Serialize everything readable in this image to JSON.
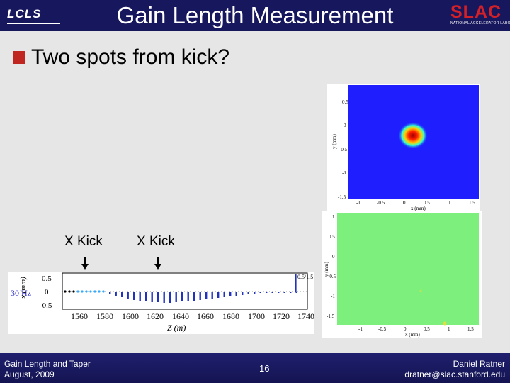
{
  "header": {
    "title": "Gain Length Measurement",
    "left_logo": "LCLS",
    "right_logo": "SLAC",
    "right_logo_sub": "NATIONAL ACCELERATOR LABORATORY",
    "accent_color": "#17175e",
    "logo_red": "#d42027"
  },
  "bullet": {
    "text": "Two spots from kick?",
    "color": "#c0251f"
  },
  "kick_labels": [
    "X Kick",
    "X Kick"
  ],
  "profile_plot": {
    "side_label": "30 Hz",
    "ylabel": "x (mm)",
    "xlabel": "Z (m)",
    "y_ticks": [
      "0.5",
      "0",
      "-0.5"
    ],
    "x_ticks": [
      "1560",
      "1580",
      "1600",
      "1620",
      "1640",
      "1660",
      "1680",
      "1700",
      "1720",
      "1740"
    ],
    "right_label": "0.5/1.5"
  },
  "image_top": {
    "ylabel": "y (mm)",
    "xlabel": "x (mm)",
    "y_ticks": [
      "0.5",
      "0",
      "-0.5",
      "-1",
      "-1.5"
    ],
    "x_ticks": [
      "-1",
      "-0.5",
      "0",
      "0.5",
      "1",
      "1.5"
    ]
  },
  "image_bottom": {
    "ylabel": "y (mm)",
    "xlabel": "x (mm)",
    "y_ticks": [
      "1",
      "0.5",
      "0",
      "-0.5",
      "-1",
      "-1.5"
    ],
    "x_ticks": [
      "-1",
      "-0.5",
      "0",
      "0.5",
      "1",
      "1.5"
    ]
  },
  "footer": {
    "left_line1": "Gain Length and Taper",
    "left_line2": "August, 2009",
    "page_number": "16",
    "right_line1": "Daniel Ratner",
    "right_line2": "dratner@slac.stanford.edu"
  }
}
